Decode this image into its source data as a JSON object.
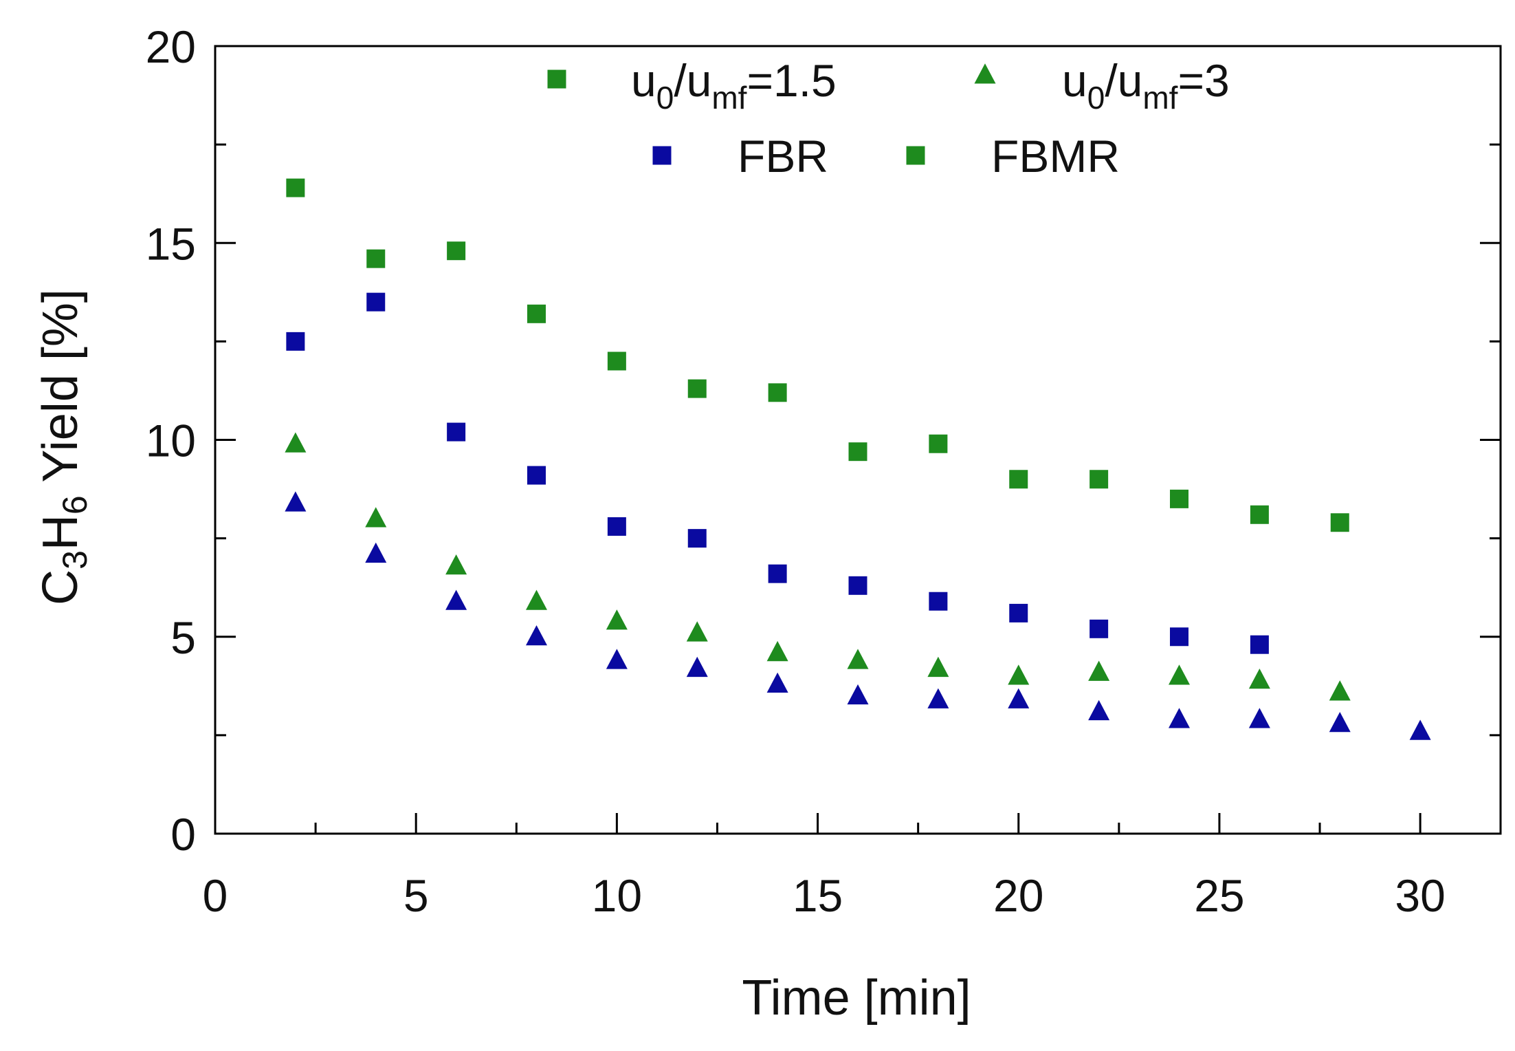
{
  "chart_data": {
    "type": "scatter",
    "title": "",
    "xlabel": "Time [min]",
    "ylabel": {
      "parts": [
        "C",
        "3",
        "H",
        "6",
        " Yield [%]"
      ]
    },
    "xlim": [
      0,
      32
    ],
    "ylim": [
      0,
      20
    ],
    "xticks_major": [
      0,
      5,
      10,
      15,
      20,
      25,
      30
    ],
    "xticks_minor": [
      2.5,
      7.5,
      12.5,
      17.5,
      22.5,
      27.5
    ],
    "yticks_major": [
      0,
      5,
      10,
      15,
      20
    ],
    "yticks_minor": [
      2.5,
      7.5,
      12.5,
      17.5
    ],
    "grid": false,
    "legend": {
      "placement": "top-center",
      "row1": [
        {
          "marker": "square",
          "color": "#1e8b1e",
          "label_parts": [
            "u",
            "0",
            "/u",
            "mf",
            "=1.5"
          ]
        },
        {
          "marker": "triangle",
          "color": "#1e8b1e",
          "label_parts": [
            "u",
            "0",
            "/u",
            "mf",
            "=3"
          ]
        }
      ],
      "row2": [
        {
          "marker": "square",
          "color": "#0a0aa0",
          "label": "FBR"
        },
        {
          "marker": "square",
          "color": "#1e8b1e",
          "label": "FBMR"
        }
      ]
    },
    "series": [
      {
        "name": "FBMR u0/umf=1.5",
        "marker": "square",
        "color": "#1e8b1e",
        "x": [
          2,
          4,
          6,
          8,
          10,
          12,
          14,
          16,
          18,
          20,
          22,
          24,
          26,
          28
        ],
        "y": [
          16.4,
          14.6,
          14.8,
          13.2,
          12.0,
          11.3,
          11.2,
          9.7,
          9.9,
          9.0,
          9.0,
          8.5,
          8.1,
          7.9
        ]
      },
      {
        "name": "FBR u0/umf=1.5",
        "marker": "square",
        "color": "#0a0aa0",
        "x": [
          2,
          4,
          6,
          8,
          10,
          12,
          14,
          16,
          18,
          20,
          22,
          24,
          26
        ],
        "y": [
          12.5,
          13.5,
          10.2,
          9.1,
          7.8,
          7.5,
          6.6,
          6.3,
          5.9,
          5.6,
          5.2,
          5.0,
          4.8
        ]
      },
      {
        "name": "FBMR u0/umf=3",
        "marker": "triangle",
        "color": "#1e8b1e",
        "x": [
          2,
          4,
          6,
          8,
          10,
          12,
          14,
          16,
          18,
          20,
          22,
          24,
          26,
          28
        ],
        "y": [
          9.9,
          8.0,
          6.8,
          5.9,
          5.4,
          5.1,
          4.6,
          4.4,
          4.2,
          4.0,
          4.1,
          4.0,
          3.9,
          3.6
        ]
      },
      {
        "name": "FBR u0/umf=3",
        "marker": "triangle",
        "color": "#0a0aa0",
        "x": [
          2,
          4,
          6,
          8,
          10,
          12,
          14,
          16,
          18,
          20,
          22,
          24,
          26,
          28,
          30
        ],
        "y": [
          8.4,
          7.1,
          5.9,
          5.0,
          4.4,
          4.2,
          3.8,
          3.5,
          3.4,
          3.4,
          3.1,
          2.9,
          2.9,
          2.8,
          2.6
        ]
      }
    ]
  }
}
